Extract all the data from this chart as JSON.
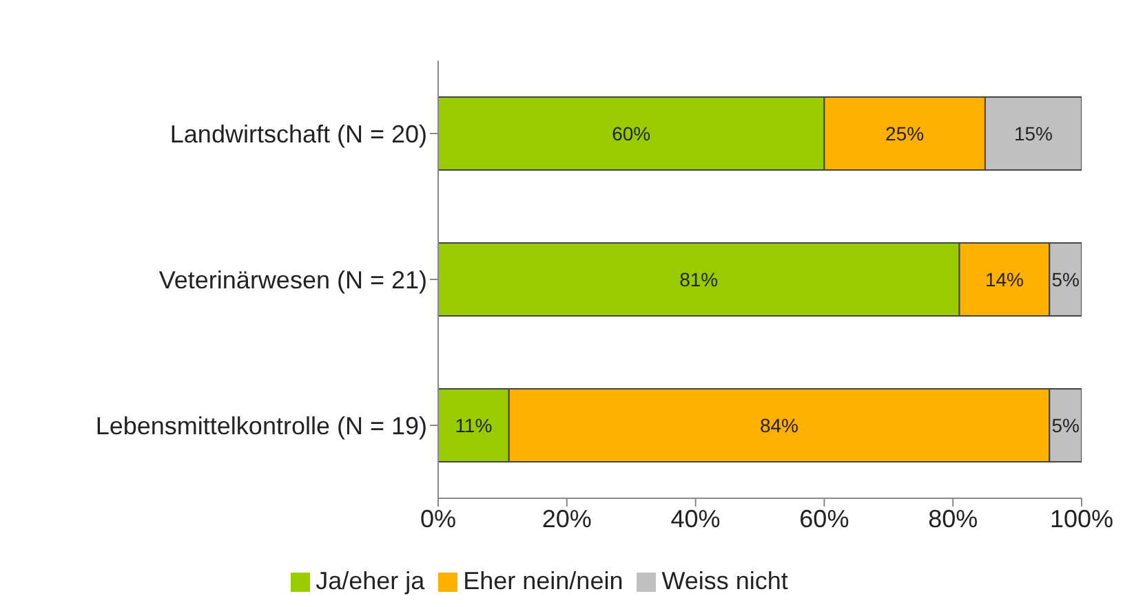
{
  "chart_data": {
    "type": "bar",
    "orientation": "horizontal",
    "stacked": true,
    "categories": [
      "Landwirtschaft (N = 20)",
      "Veterinärwesen (N = 21)",
      "Lebensmittelkontrolle (N = 19)"
    ],
    "series": [
      {
        "name": "Ja/eher ja",
        "color": "#99cc00",
        "values": [
          60,
          81,
          11
        ],
        "value_labels": [
          "60%",
          "81%",
          "11%"
        ]
      },
      {
        "name": "Eher nein/nein",
        "color": "#ffb000",
        "values": [
          25,
          14,
          84
        ],
        "value_labels": [
          "25%",
          "14%",
          "84%"
        ]
      },
      {
        "name": "Weiss nicht",
        "color": "#c0c0c0",
        "values": [
          15,
          5,
          5
        ],
        "value_labels": [
          "15%",
          "5%",
          "5%"
        ]
      }
    ],
    "xlim": [
      0,
      100
    ],
    "xticks": [
      {
        "value": 0,
        "label": "0%"
      },
      {
        "value": 20,
        "label": "20%"
      },
      {
        "value": 40,
        "label": "40%"
      },
      {
        "value": 60,
        "label": "60%"
      },
      {
        "value": 80,
        "label": "80%"
      },
      {
        "value": 100,
        "label": "100%"
      }
    ],
    "grid": false,
    "legend": "bottom"
  }
}
